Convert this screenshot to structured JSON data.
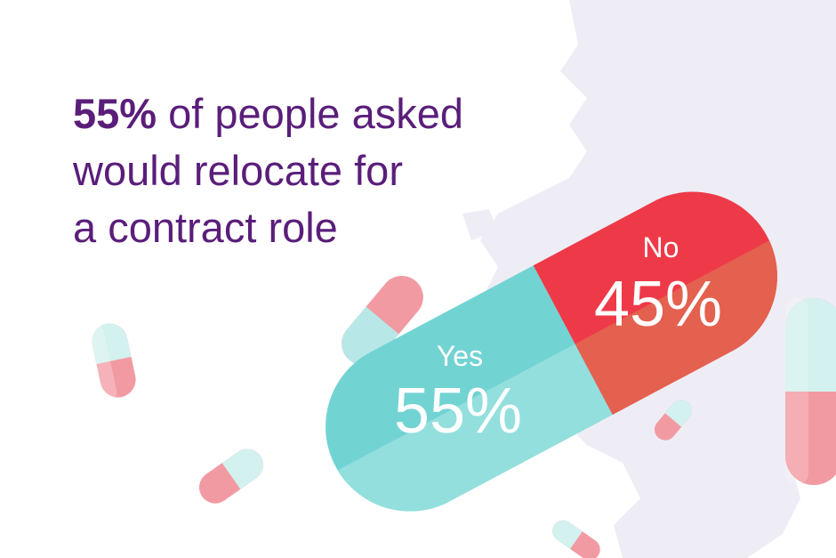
{
  "headline": {
    "highlight": "55%",
    "line1_rest": " of people asked",
    "line2": "would relocate for",
    "line3": "a contract role"
  },
  "colors": {
    "headline_text": "#5a1e7a",
    "yes_teal": "#72d3d3",
    "yes_teal_light": "#93dfdd",
    "no_red": "#ee3a48",
    "no_red_dark": "#e4604f",
    "pill_pink": "#f29aa2",
    "pill_mint": "#d3f1ee",
    "map_lavender": "#eeedf5"
  },
  "chart_data": {
    "type": "pie",
    "categories": [
      "Yes",
      "No"
    ],
    "values": [
      55,
      45
    ],
    "labels": [
      "55%",
      "45%"
    ],
    "title": "",
    "legend": "none"
  }
}
